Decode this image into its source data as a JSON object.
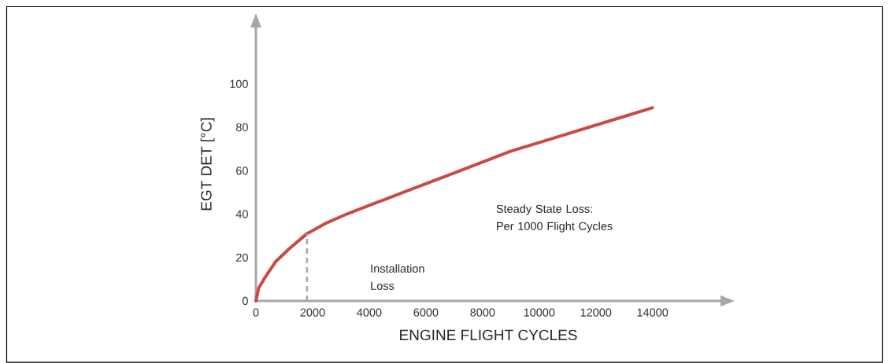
{
  "chart_data": {
    "type": "line",
    "xlabel": "ENGINE FLIGHT CYCLES",
    "ylabel": "EGT DET [°C]",
    "x": [
      0,
      100,
      330,
      690,
      1170,
      1800,
      2500,
      3200,
      4000,
      5000,
      6000,
      7000,
      8000,
      9000,
      10000,
      11000,
      12000,
      13000,
      14000
    ],
    "series": [
      {
        "color": "#c94a46",
        "values": [
          0,
          6,
          11,
          18,
          24,
          31,
          36,
          40,
          44,
          49,
          54,
          59,
          64,
          69,
          73,
          77,
          81,
          85,
          89
        ]
      }
    ],
    "xlim": [
      0,
      16400
    ],
    "ylim": [
      0,
      126
    ],
    "xticks": [
      0,
      2000,
      4000,
      6000,
      8000,
      10000,
      12000,
      14000
    ],
    "yticks": [
      0,
      20,
      40,
      60,
      80,
      100
    ],
    "ref_lines": [
      {
        "axis": "x",
        "value": 1800,
        "color": "#aaaaaa",
        "line_style": "dashed"
      }
    ],
    "annotations": [
      "Installation Loss",
      "Steady State Loss: Per 1000 Flight Cycles"
    ]
  }
}
